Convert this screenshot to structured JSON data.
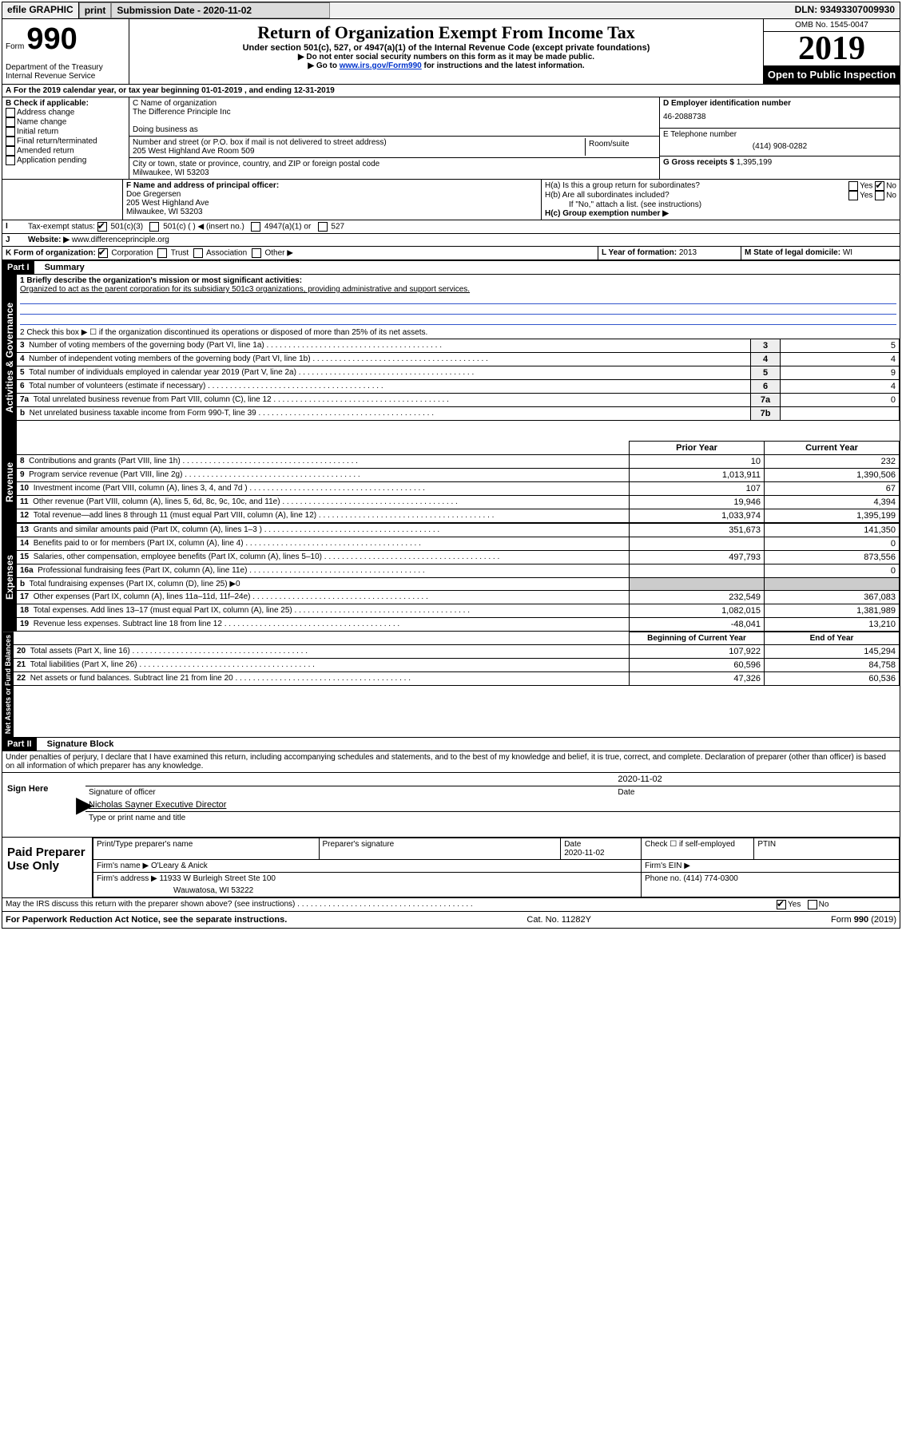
{
  "topbar": {
    "efile": "efile GRAPHIC",
    "print": "print",
    "sub_label": "Submission Date - 2020-11-02",
    "dln": "DLN: 93493307009930"
  },
  "header": {
    "form_prefix": "Form",
    "form_num": "990",
    "title": "Return of Organization Exempt From Income Tax",
    "subtitle": "Under section 501(c), 527, or 4947(a)(1) of the Internal Revenue Code (except private foundations)",
    "note1": "▶ Do not enter social security numbers on this form as it may be made public.",
    "note2_pre": "▶ Go to ",
    "note2_link": "www.irs.gov/Form990",
    "note2_post": " for instructions and the latest information.",
    "omb": "OMB No. 1545-0047",
    "year": "2019",
    "open": "Open to Public Inspection",
    "dept": "Department of the Treasury\nInternal Revenue Service"
  },
  "period": {
    "label": "For the 2019 calendar year, or tax year beginning ",
    "begin": "01-01-2019",
    "mid": " , and ending ",
    "end": "12-31-2019"
  },
  "boxB": {
    "header": "B Check if applicable:",
    "items": [
      "Address change",
      "Name change",
      "Initial return",
      "Final return/terminated",
      "Amended return",
      "Application pending"
    ]
  },
  "boxC": {
    "c_label": "C Name of organization",
    "name": "The Difference Principle Inc",
    "dba_label": "Doing business as",
    "addr_label": "Number and street (or P.O. box if mail is not delivered to street address)",
    "room_label": "Room/suite",
    "addr": "205 West Highland Ave Room 509",
    "city_label": "City or town, state or province, country, and ZIP or foreign postal code",
    "city": "Milwaukee, WI  53203"
  },
  "boxD": {
    "label": "D Employer identification number",
    "ein": "46-2088738"
  },
  "boxE": {
    "label": "E Telephone number",
    "phone": "(414) 908-0282"
  },
  "boxG": {
    "label": "G Gross receipts $ ",
    "amount": "1,395,199"
  },
  "boxF": {
    "label": "F  Name and address of principal officer:",
    "name": "Doe Gregersen",
    "line1": "205 West Highland Ave",
    "line2": "Milwaukee, WI  53203"
  },
  "boxH": {
    "a": "H(a)  Is this a group return for subordinates?",
    "b": "H(b)  Are all subordinates included?",
    "b_note": "If \"No,\" attach a list. (see instructions)",
    "c": "H(c)  Group exemption number ▶",
    "yes": "Yes",
    "no": "No"
  },
  "boxI": {
    "label": "Tax-exempt status:",
    "opts": [
      "501(c)(3)",
      "501(c) (  ) ◀ (insert no.)",
      "4947(a)(1) or",
      "527"
    ]
  },
  "boxJ": {
    "label": "Website: ▶",
    "url": "www.differenceprinciple.org"
  },
  "boxK": {
    "label": "K Form of organization:",
    "opts": [
      "Corporation",
      "Trust",
      "Association",
      "Other ▶"
    ]
  },
  "boxL": {
    "label": "L Year of formation: ",
    "val": "2013"
  },
  "boxM": {
    "label": "M State of legal domicile: ",
    "val": "WI"
  },
  "part1": {
    "title": "Part I",
    "subtitle": "Summary",
    "l1": "1  Briefly describe the organization's mission or most significant activities:",
    "mission": "Organized to act as the parent corporation for its subsidiary 501c3 organizations, providing administrative and support services.",
    "l2": "2   Check this box ▶ ☐  if the organization discontinued its operations or disposed of more than 25% of its net assets.",
    "lines": [
      {
        "n": "3",
        "t": "Number of voting members of the governing body (Part VI, line 1a)",
        "box": "3",
        "v": "5"
      },
      {
        "n": "4",
        "t": "Number of independent voting members of the governing body (Part VI, line 1b)",
        "box": "4",
        "v": "4"
      },
      {
        "n": "5",
        "t": "Total number of individuals employed in calendar year 2019 (Part V, line 2a)",
        "box": "5",
        "v": "9"
      },
      {
        "n": "6",
        "t": "Total number of volunteers (estimate if necessary)",
        "box": "6",
        "v": "4"
      },
      {
        "n": "7a",
        "t": "Total unrelated business revenue from Part VIII, column (C), line 12",
        "box": "7a",
        "v": "0"
      },
      {
        "n": "b",
        "t": "Net unrelated business taxable income from Form 990-T, line 39",
        "box": "7b",
        "v": ""
      }
    ],
    "col_headers": {
      "prior": "Prior Year",
      "current": "Current Year",
      "boy": "Beginning of Current Year",
      "eoy": "End of Year"
    },
    "revenue": [
      {
        "n": "8",
        "t": "Contributions and grants (Part VIII, line 1h)",
        "p": "10",
        "c": "232"
      },
      {
        "n": "9",
        "t": "Program service revenue (Part VIII, line 2g)",
        "p": "1,013,911",
        "c": "1,390,506"
      },
      {
        "n": "10",
        "t": "Investment income (Part VIII, column (A), lines 3, 4, and 7d )",
        "p": "107",
        "c": "67"
      },
      {
        "n": "11",
        "t": "Other revenue (Part VIII, column (A), lines 5, 6d, 8c, 9c, 10c, and 11e)",
        "p": "19,946",
        "c": "4,394"
      },
      {
        "n": "12",
        "t": "Total revenue—add lines 8 through 11 (must equal Part VIII, column (A), line 12)",
        "p": "1,033,974",
        "c": "1,395,199"
      }
    ],
    "expenses": [
      {
        "n": "13",
        "t": "Grants and similar amounts paid (Part IX, column (A), lines 1–3 )",
        "p": "351,673",
        "c": "141,350"
      },
      {
        "n": "14",
        "t": "Benefits paid to or for members (Part IX, column (A), line 4)",
        "p": "",
        "c": "0"
      },
      {
        "n": "15",
        "t": "Salaries, other compensation, employee benefits (Part IX, column (A), lines 5–10)",
        "p": "497,793",
        "c": "873,556"
      },
      {
        "n": "16a",
        "t": "Professional fundraising fees (Part IX, column (A), line 11e)",
        "p": "",
        "c": "0"
      },
      {
        "n": "b",
        "t": "Total fundraising expenses (Part IX, column (D), line 25) ▶0",
        "p": "—",
        "c": "—"
      },
      {
        "n": "17",
        "t": "Other expenses (Part IX, column (A), lines 11a–11d, 11f–24e)",
        "p": "232,549",
        "c": "367,083"
      },
      {
        "n": "18",
        "t": "Total expenses. Add lines 13–17 (must equal Part IX, column (A), line 25)",
        "p": "1,082,015",
        "c": "1,381,989"
      },
      {
        "n": "19",
        "t": "Revenue less expenses. Subtract line 18 from line 12",
        "p": "-48,041",
        "c": "13,210"
      }
    ],
    "netassets": [
      {
        "n": "20",
        "t": "Total assets (Part X, line 16)",
        "p": "107,922",
        "c": "145,294"
      },
      {
        "n": "21",
        "t": "Total liabilities (Part X, line 26)",
        "p": "60,596",
        "c": "84,758"
      },
      {
        "n": "22",
        "t": "Net assets or fund balances. Subtract line 21 from line 20",
        "p": "47,326",
        "c": "60,536"
      }
    ],
    "vlabels": {
      "ag": "Activities & Governance",
      "rev": "Revenue",
      "exp": "Expenses",
      "na": "Net Assets or\nFund Balances"
    }
  },
  "part2": {
    "title": "Part II",
    "subtitle": "Signature Block",
    "decl": "Under penalties of perjury, I declare that I have examined this return, including accompanying schedules and statements, and to the best of my knowledge and belief, it is true, correct, and complete. Declaration of preparer (other than officer) is based on all information of which preparer has any knowledge.",
    "sign_here": "Sign Here",
    "sig_officer": "Signature of officer",
    "sig_date": "2020-11-02",
    "date_label": "Date",
    "typed_name": "Nicholas Sayner  Executive Director",
    "typed_label": "Type or print name and title",
    "paid": "Paid Preparer Use Only",
    "prep_name_label": "Print/Type preparer's name",
    "prep_sig_label": "Preparer's signature",
    "prep_date": "2020-11-02",
    "check_self": "Check ☐ if self-employed",
    "ptin": "PTIN",
    "firm_name_label": "Firm's name    ▶",
    "firm_name": "O'Leary & Anick",
    "firm_ein": "Firm's EIN ▶",
    "firm_addr_label": "Firm's address ▶",
    "firm_addr": "11933 W Burleigh Street Ste 100",
    "firm_city": "Wauwatosa, WI  53222",
    "firm_phone_label": "Phone no. ",
    "firm_phone": "(414) 774-0300",
    "discuss": "May the IRS discuss this return with the preparer shown above? (see instructions)",
    "yes": "Yes",
    "no": "No"
  },
  "footer": {
    "pra": "For Paperwork Reduction Act Notice, see the separate instructions.",
    "cat": "Cat. No. 11282Y",
    "form": "Form 990 (2019)"
  }
}
